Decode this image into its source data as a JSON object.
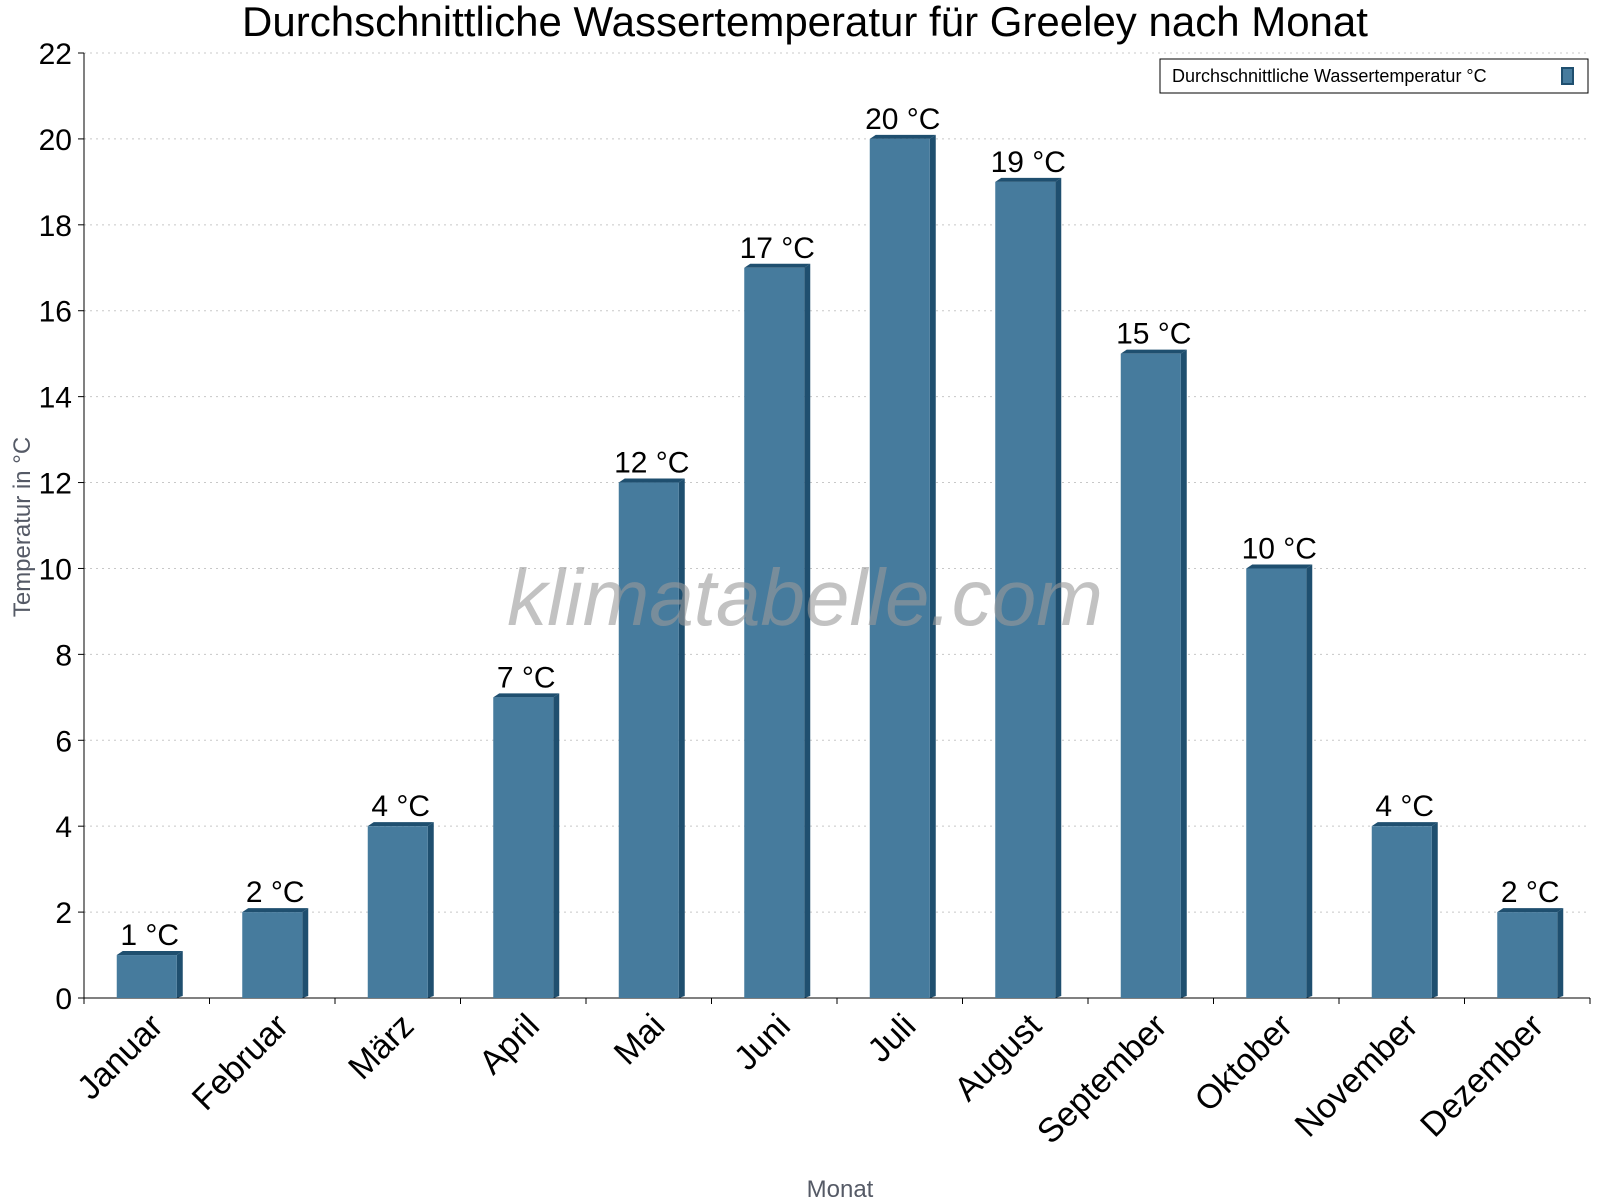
{
  "chart_data": {
    "type": "bar",
    "title": "Durchschnittliche Wassertemperatur für Greeley nach Monat",
    "xlabel": "Monat",
    "ylabel": "Temperatur in °C",
    "categories": [
      "Januar",
      "Februar",
      "März",
      "April",
      "Mai",
      "Juni",
      "Juli",
      "August",
      "September",
      "Oktober",
      "November",
      "Dezember"
    ],
    "series": [
      {
        "name": "Durchschnittliche Wassertemperatur °C",
        "values": [
          1,
          2,
          4,
          7,
          12,
          17,
          20,
          19,
          15,
          10,
          4,
          2
        ],
        "labels": [
          "1 °C",
          "2 °C",
          "4 °C",
          "7 °C",
          "12 °C",
          "17 °C",
          "20 °C",
          "19 °C",
          "15 °C",
          "10 °C",
          "4 °C",
          "2 °C"
        ]
      }
    ],
    "ylim": [
      0,
      22
    ],
    "yticks": [
      "0",
      "2",
      "4",
      "6",
      "8",
      "10",
      "12",
      "14",
      "16",
      "18",
      "20",
      "22"
    ],
    "grid": "horizontal dotted",
    "legend_position": "top-right",
    "colors": {
      "bar": "#467b9d",
      "bar_side": "#1f4f6f"
    }
  },
  "watermark": "klimatabelle.com"
}
